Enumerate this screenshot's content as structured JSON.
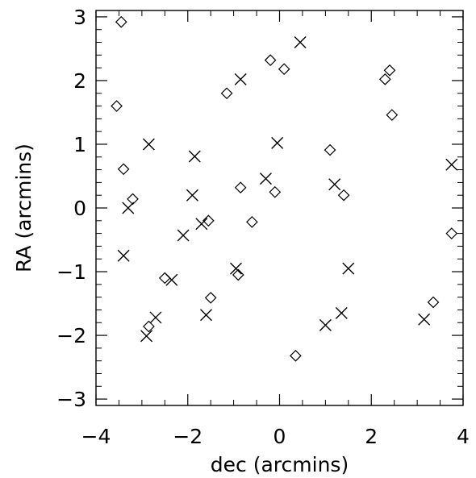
{
  "chart_data": {
    "type": "scatter",
    "xlabel": "dec (arcmins)",
    "ylabel": "RA (arcmins)",
    "xlim": [
      -4,
      4
    ],
    "ylim": [
      -3.1,
      3.1
    ],
    "x_ticks": [
      -4,
      -2,
      0,
      2,
      4
    ],
    "x_tick_labels": [
      "−4",
      "−2",
      "0",
      "2",
      "4"
    ],
    "y_ticks": [
      -3,
      -2,
      -1,
      0,
      1,
      2,
      3
    ],
    "y_tick_labels": [
      "−3",
      "−2",
      "−1",
      "0",
      "1",
      "2",
      "3"
    ],
    "x_minor_step": 0.5,
    "y_minor_step": 0.2,
    "grid": false,
    "legend": "none",
    "series": [
      {
        "marker": "diamond",
        "color": "#000000",
        "points": [
          [
            -3.45,
            2.92
          ],
          [
            -3.55,
            1.6
          ],
          [
            -3.4,
            0.61
          ],
          [
            -3.2,
            0.14
          ],
          [
            -1.15,
            1.8
          ],
          [
            -0.2,
            2.32
          ],
          [
            0.1,
            2.18
          ],
          [
            2.3,
            2.02
          ],
          [
            2.4,
            2.16
          ],
          [
            2.45,
            1.46
          ],
          [
            1.1,
            0.91
          ],
          [
            -0.85,
            0.32
          ],
          [
            -0.1,
            0.25
          ],
          [
            1.4,
            0.2
          ],
          [
            -1.55,
            -0.2
          ],
          [
            -0.6,
            -0.22
          ],
          [
            3.75,
            -0.4
          ],
          [
            -2.5,
            -1.1
          ],
          [
            -0.9,
            -1.05
          ],
          [
            -1.5,
            -1.41
          ],
          [
            3.35,
            -1.48
          ],
          [
            -2.85,
            -1.86
          ],
          [
            0.35,
            -2.32
          ]
        ]
      },
      {
        "marker": "cross",
        "color": "#000000",
        "points": [
          [
            0.45,
            2.6
          ],
          [
            -0.85,
            2.02
          ],
          [
            -2.85,
            1.0
          ],
          [
            -0.05,
            1.02
          ],
          [
            -1.85,
            0.81
          ],
          [
            -0.3,
            0.46
          ],
          [
            1.2,
            0.37
          ],
          [
            3.75,
            0.68
          ],
          [
            -1.9,
            0.2
          ],
          [
            -3.3,
            0.0
          ],
          [
            -1.7,
            -0.25
          ],
          [
            -2.1,
            -0.43
          ],
          [
            -3.4,
            -0.75
          ],
          [
            -0.95,
            -0.95
          ],
          [
            1.5,
            -0.95
          ],
          [
            -2.35,
            -1.13
          ],
          [
            -1.6,
            -1.68
          ],
          [
            -2.7,
            -1.72
          ],
          [
            1.35,
            -1.65
          ],
          [
            1.0,
            -1.84
          ],
          [
            3.15,
            -1.75
          ],
          [
            -2.9,
            -2.01
          ]
        ]
      }
    ]
  }
}
